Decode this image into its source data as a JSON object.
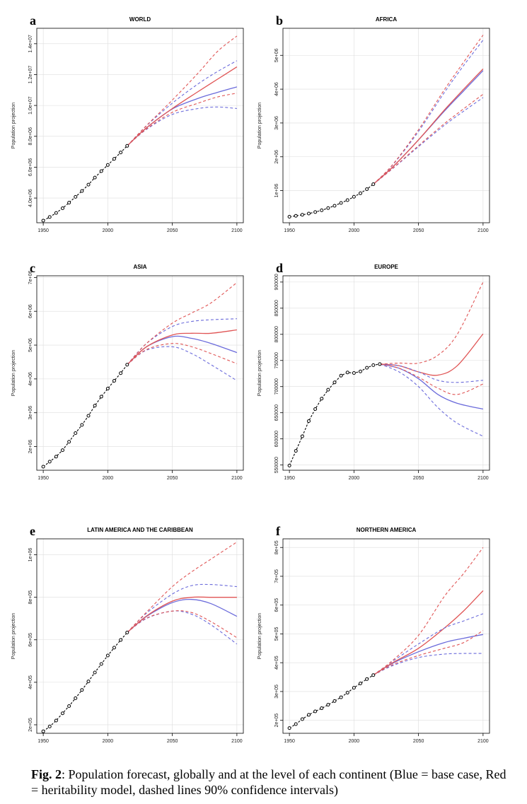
{
  "caption": {
    "label": "Fig. 2",
    "text": ": Population forecast, globally and at the level of each continent (Blue = base case, Red = heritability model, dashed lines 90% confidence intervals)"
  },
  "colors": {
    "historical": "#000000",
    "base": "#6b6bdb",
    "heritability": "#e05555",
    "grid": "#dddddd",
    "frame": "#000000"
  },
  "chart_data": [
    {
      "type": "line",
      "letter": "a",
      "title": "WORLD",
      "ylabel": "Population projection",
      "xlabel": "",
      "xlim": [
        1945,
        2105
      ],
      "ylim": [
        2400000,
        15000000
      ],
      "xticks": [
        1950,
        2000,
        2050,
        2100
      ],
      "xtick_labels": [
        "1950",
        "2000",
        "2050",
        "2100"
      ],
      "yticks": [
        4000000,
        6000000,
        8000000,
        10000000,
        12000000,
        14000000
      ],
      "ytick_labels": [
        "4.0e+06",
        "6.0e+06",
        "8.0e+06",
        "1.0e+07",
        "1.2e+07",
        "1.4e+07"
      ],
      "historical": {
        "x": [
          1950,
          1955,
          1960,
          1965,
          1970,
          1975,
          1980,
          1985,
          1990,
          1995,
          2000,
          2005,
          2010,
          2015
        ],
        "y": [
          2536000,
          2773000,
          3035000,
          3339000,
          3700000,
          4079000,
          4458000,
          4870000,
          5327000,
          5744000,
          6143000,
          6541000,
          6956000,
          7380000
        ]
      },
      "projection_x": [
        2015,
        2030,
        2050,
        2070,
        2085,
        2100
      ],
      "series": [
        {
          "name": "Base case",
          "style": "solid",
          "color": "base",
          "values": [
            7380000,
            8550000,
            9770000,
            10460000,
            10850000,
            11200000
          ]
        },
        {
          "name": "Heritability model",
          "style": "solid",
          "color": "heritability",
          "values": [
            7380000,
            8560000,
            9800000,
            10900000,
            11700000,
            12500000
          ]
        },
        {
          "name": "Base case 90% upper",
          "style": "dashed",
          "color": "base",
          "values": [
            7380000,
            8680000,
            10150000,
            11400000,
            12200000,
            12900000
          ]
        },
        {
          "name": "Base case 90% lower",
          "style": "dashed",
          "color": "base",
          "values": [
            7380000,
            8450000,
            9420000,
            9800000,
            9900000,
            9800000
          ]
        },
        {
          "name": "Heritability 90% upper",
          "style": "dashed",
          "color": "heritability",
          "values": [
            7380000,
            8700000,
            10350000,
            12100000,
            13500000,
            14500000
          ]
        },
        {
          "name": "Heritability 90% lower",
          "style": "dashed",
          "color": "heritability",
          "values": [
            7380000,
            8480000,
            9550000,
            10150000,
            10550000,
            10800000
          ]
        }
      ]
    },
    {
      "type": "line",
      "letter": "b",
      "title": "AFRICA",
      "ylabel": "Population projection",
      "xlabel": "",
      "xlim": [
        1945,
        2105
      ],
      "ylim": [
        50000,
        5800000
      ],
      "xticks": [
        1950,
        2000,
        2050,
        2100
      ],
      "xtick_labels": [
        "1950",
        "2000",
        "2050",
        "2100"
      ],
      "yticks": [
        1000000,
        2000000,
        3000000,
        4000000,
        5000000
      ],
      "ytick_labels": [
        "1e+06",
        "2e+06",
        "3e+06",
        "4e+06",
        "5e+06"
      ],
      "historical": {
        "x": [
          1950,
          1955,
          1960,
          1965,
          1970,
          1975,
          1980,
          1985,
          1990,
          1995,
          2000,
          2005,
          2010,
          2015
        ],
        "y": [
          228000,
          255000,
          285000,
          322000,
          366000,
          418000,
          483000,
          553000,
          635000,
          720000,
          818000,
          922000,
          1044000,
          1190000
        ]
      },
      "projection_x": [
        2015,
        2030,
        2050,
        2070,
        2085,
        2100
      ],
      "series": [
        {
          "name": "Base case",
          "style": "solid",
          "color": "base",
          "values": [
            1190000,
            1700000,
            2500000,
            3350000,
            3950000,
            4550000
          ]
        },
        {
          "name": "Heritability model",
          "style": "solid",
          "color": "heritability",
          "values": [
            1190000,
            1700000,
            2500000,
            3380000,
            4000000,
            4600000
          ]
        },
        {
          "name": "Base case 90% upper",
          "style": "dashed",
          "color": "base",
          "values": [
            1190000,
            1760000,
            2750000,
            3900000,
            4700000,
            5450000
          ]
        },
        {
          "name": "Base case 90% lower",
          "style": "dashed",
          "color": "base",
          "values": [
            1190000,
            1650000,
            2300000,
            2930000,
            3350000,
            3750000
          ]
        },
        {
          "name": "Heritability 90% upper",
          "style": "dashed",
          "color": "heritability",
          "values": [
            1190000,
            1770000,
            2800000,
            3980000,
            4800000,
            5600000
          ]
        },
        {
          "name": "Heritability 90% lower",
          "style": "dashed",
          "color": "heritability",
          "values": [
            1190000,
            1660000,
            2330000,
            2980000,
            3420000,
            3850000
          ]
        }
      ]
    },
    {
      "type": "line",
      "letter": "c",
      "title": "ASIA",
      "ylabel": "Population projection",
      "xlabel": "",
      "xlim": [
        1945,
        2105
      ],
      "ylim": [
        1300000,
        7050000
      ],
      "xticks": [
        1950,
        2000,
        2050,
        2100
      ],
      "xtick_labels": [
        "1950",
        "2000",
        "2050",
        "2100"
      ],
      "yticks": [
        2000000,
        3000000,
        4000000,
        5000000,
        6000000,
        7000000
      ],
      "ytick_labels": [
        "2e+06",
        "3e+06",
        "4e+06",
        "5e+06",
        "6e+06",
        "7e+06"
      ],
      "historical": {
        "x": [
          1950,
          1955,
          1960,
          1965,
          1970,
          1975,
          1980,
          1985,
          1990,
          1995,
          2000,
          2005,
          2010,
          2015
        ],
        "y": [
          1405000,
          1553000,
          1703000,
          1894000,
          2142000,
          2397000,
          2640000,
          2910000,
          3210000,
          3476000,
          3714000,
          3945000,
          4170000,
          4420000
        ]
      },
      "projection_x": [
        2015,
        2030,
        2050,
        2065,
        2080,
        2100
      ],
      "series": [
        {
          "name": "Base case",
          "style": "solid",
          "color": "base",
          "values": [
            4420000,
            4950000,
            5250000,
            5200000,
            5050000,
            4780000
          ]
        },
        {
          "name": "Heritability model",
          "style": "solid",
          "color": "heritability",
          "values": [
            4420000,
            4950000,
            5300000,
            5350000,
            5350000,
            5450000
          ]
        },
        {
          "name": "Base case 90% upper",
          "style": "dashed",
          "color": "base",
          "values": [
            4420000,
            5050000,
            5550000,
            5700000,
            5750000,
            5780000
          ]
        },
        {
          "name": "Base case 90% lower",
          "style": "dashed",
          "color": "base",
          "values": [
            4420000,
            4850000,
            4950000,
            4750000,
            4420000,
            3950000
          ]
        },
        {
          "name": "Heritability 90% upper",
          "style": "dashed",
          "color": "heritability",
          "values": [
            4420000,
            5050000,
            5650000,
            5950000,
            6250000,
            6850000
          ]
        },
        {
          "name": "Heritability 90% lower",
          "style": "dashed",
          "color": "heritability",
          "values": [
            4420000,
            4870000,
            5050000,
            4950000,
            4750000,
            4450000
          ]
        }
      ]
    },
    {
      "type": "line",
      "letter": "d",
      "title": "EUROPE",
      "ylabel": "Population projection",
      "xlabel": "",
      "xlim": [
        1945,
        2105
      ],
      "ylim": [
        540000,
        912000
      ],
      "xticks": [
        1950,
        2000,
        2050,
        2100
      ],
      "xtick_labels": [
        "1950",
        "2000",
        "2050",
        "2100"
      ],
      "yticks": [
        550000,
        600000,
        650000,
        700000,
        750000,
        800000,
        850000,
        900000
      ],
      "ytick_labels": [
        "550000",
        "600000",
        "650000",
        "700000",
        "750000",
        "800000",
        "850000",
        "900000"
      ],
      "historical": {
        "x": [
          1950,
          1955,
          1960,
          1965,
          1970,
          1975,
          1980,
          1985,
          1990,
          1995,
          2000,
          2005,
          2010,
          2015,
          2020
        ],
        "y": [
          549000,
          577000,
          605000,
          634000,
          657000,
          677000,
          694000,
          708000,
          721000,
          727000,
          726000,
          729000,
          736000,
          741000,
          743000
        ]
      },
      "projection_x": [
        2020,
        2035,
        2050,
        2065,
        2080,
        2100
      ],
      "series": [
        {
          "name": "Base case",
          "style": "solid",
          "color": "base",
          "values": [
            743000,
            735000,
            715000,
            685000,
            668000,
            657000
          ]
        },
        {
          "name": "Heritability model",
          "style": "solid",
          "color": "heritability",
          "values": [
            743000,
            740000,
            728000,
            722000,
            740000,
            801000
          ]
        },
        {
          "name": "Base case 90% upper",
          "style": "dashed",
          "color": "base",
          "values": [
            743000,
            740000,
            728000,
            712000,
            708000,
            712000
          ]
        },
        {
          "name": "Base case 90% lower",
          "style": "dashed",
          "color": "base",
          "values": [
            743000,
            728000,
            700000,
            660000,
            630000,
            605000
          ]
        },
        {
          "name": "Heritability 90% upper",
          "style": "dashed",
          "color": "heritability",
          "values": [
            743000,
            745000,
            745000,
            760000,
            800000,
            900000
          ]
        },
        {
          "name": "Heritability 90% lower",
          "style": "dashed",
          "color": "heritability",
          "values": [
            743000,
            735000,
            718000,
            697000,
            685000,
            705000
          ]
        }
      ]
    },
    {
      "type": "line",
      "letter": "e",
      "title": "LATIN AMERICA AND THE CARIBBEAN",
      "ylabel": "Population projection",
      "xlabel": "",
      "xlim": [
        1945,
        2105
      ],
      "ylim": [
        160000,
        1075000
      ],
      "xticks": [
        1950,
        2000,
        2050,
        2100
      ],
      "xtick_labels": [
        "1950",
        "2000",
        "2050",
        "2100"
      ],
      "yticks": [
        200000,
        400000,
        600000,
        800000,
        1000000
      ],
      "ytick_labels": [
        "2e+05",
        "4e+05",
        "6e+05",
        "8e+05",
        "1e+06"
      ],
      "historical": {
        "x": [
          1950,
          1955,
          1960,
          1965,
          1970,
          1975,
          1980,
          1985,
          1990,
          1995,
          2000,
          2005,
          2010,
          2015
        ],
        "y": [
          169000,
          192000,
          220000,
          254000,
          288000,
          325000,
          364000,
          404000,
          446000,
          486000,
          526000,
          563000,
          599000,
          634000
        ]
      },
      "projection_x": [
        2015,
        2030,
        2050,
        2065,
        2080,
        2100
      ],
      "series": [
        {
          "name": "Base case",
          "style": "solid",
          "color": "base",
          "values": [
            634000,
            710000,
            775000,
            790000,
            770000,
            710000
          ]
        },
        {
          "name": "Heritability model",
          "style": "solid",
          "color": "heritability",
          "values": [
            634000,
            712000,
            782000,
            800000,
            800000,
            800000
          ]
        },
        {
          "name": "Base case 90% upper",
          "style": "dashed",
          "color": "base",
          "values": [
            634000,
            725000,
            815000,
            855000,
            860000,
            850000
          ]
        },
        {
          "name": "Base case 90% lower",
          "style": "dashed",
          "color": "base",
          "values": [
            634000,
            700000,
            735000,
            720000,
            670000,
            580000
          ]
        },
        {
          "name": "Heritability 90% upper",
          "style": "dashed",
          "color": "heritability",
          "values": [
            634000,
            730000,
            850000,
            920000,
            980000,
            1060000
          ]
        },
        {
          "name": "Heritability 90% lower",
          "style": "dashed",
          "color": "heritability",
          "values": [
            634000,
            702000,
            735000,
            728000,
            685000,
            610000
          ]
        }
      ]
    },
    {
      "type": "line",
      "letter": "f",
      "title": "NORTHERN AMERICA",
      "ylabel": "Population projection",
      "xlabel": "",
      "xlim": [
        1945,
        2105
      ],
      "ylim": [
        155000,
        830000
      ],
      "xticks": [
        1950,
        2000,
        2050,
        2100
      ],
      "xtick_labels": [
        "1950",
        "2000",
        "2050",
        "2100"
      ],
      "yticks": [
        200000,
        300000,
        400000,
        500000,
        600000,
        700000,
        800000
      ],
      "ytick_labels": [
        "2e+05",
        "3e+05",
        "4e+05",
        "5e+05",
        "6e+05",
        "7e+05",
        "8e+05"
      ],
      "historical": {
        "x": [
          1950,
          1955,
          1960,
          1965,
          1970,
          1975,
          1980,
          1985,
          1990,
          1995,
          2000,
          2005,
          2010,
          2015
        ],
        "y": [
          173000,
          187000,
          204000,
          219000,
          231000,
          242000,
          254000,
          267000,
          280000,
          296000,
          313000,
          328000,
          343000,
          357000
        ]
      },
      "projection_x": [
        2015,
        2030,
        2050,
        2070,
        2085,
        2100
      ],
      "series": [
        {
          "name": "Base case",
          "style": "solid",
          "color": "base",
          "values": [
            357000,
            398000,
            438000,
            470000,
            485000,
            498000
          ]
        },
        {
          "name": "Heritability model",
          "style": "solid",
          "color": "heritability",
          "values": [
            357000,
            400000,
            450000,
            520000,
            580000,
            650000
          ]
        },
        {
          "name": "Base case 90% upper",
          "style": "dashed",
          "color": "base",
          "values": [
            357000,
            405000,
            465000,
            520000,
            545000,
            570000
          ]
        },
        {
          "name": "Base case 90% lower",
          "style": "dashed",
          "color": "base",
          "values": [
            357000,
            390000,
            418000,
            430000,
            432000,
            432000
          ]
        },
        {
          "name": "Heritability 90% upper",
          "style": "dashed",
          "color": "heritability",
          "values": [
            357000,
            408000,
            495000,
            630000,
            710000,
            800000
          ]
        },
        {
          "name": "Heritability 90% lower",
          "style": "dashed",
          "color": "heritability",
          "values": [
            357000,
            393000,
            425000,
            450000,
            470000,
            512000
          ]
        }
      ]
    }
  ]
}
